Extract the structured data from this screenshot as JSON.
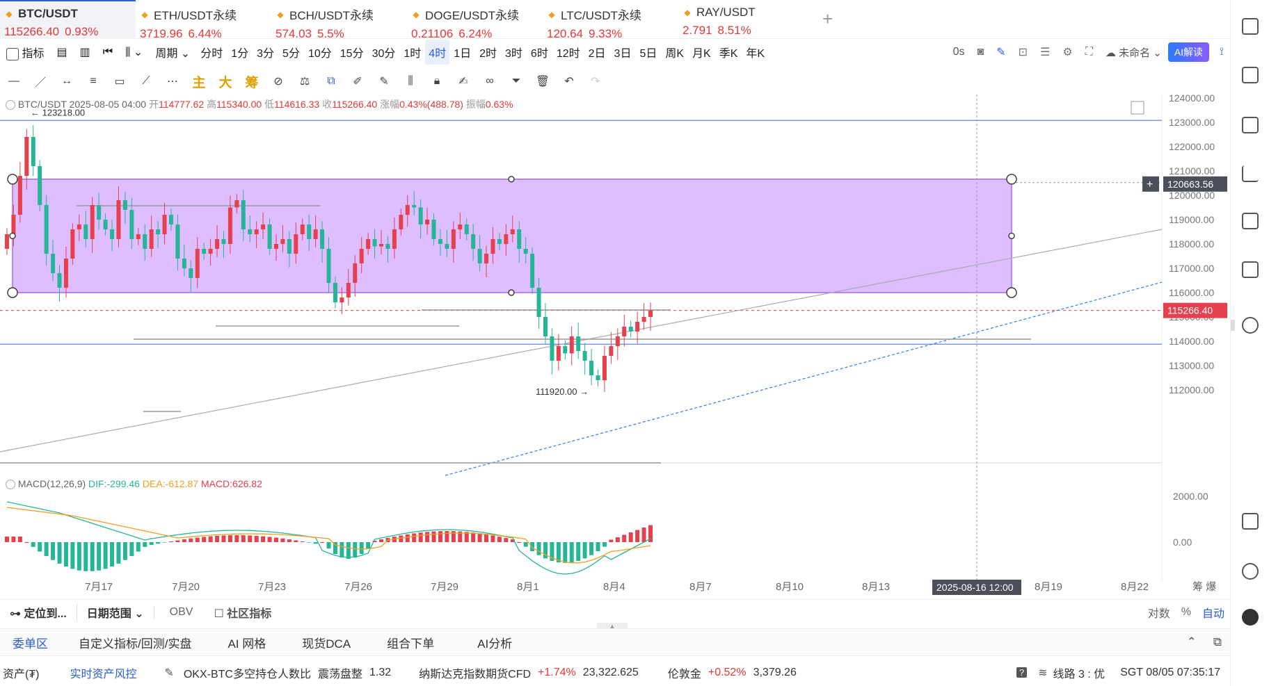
{
  "tabs": [
    {
      "name": "BTC/USDT",
      "price": "115266.40",
      "change": "0.93%",
      "active": true
    },
    {
      "name": "ETH/USDT永续",
      "price": "3719.96",
      "change": "6.44%"
    },
    {
      "name": "BCH/USDT永续",
      "price": "574.03",
      "change": "5.5%"
    },
    {
      "name": "DOGE/USDT永续",
      "price": "0.21106",
      "change": "6.24%"
    },
    {
      "name": "LTC/USDT永续",
      "price": "120.64",
      "change": "9.33%"
    },
    {
      "name": "RAY/USDT",
      "price": "2.791",
      "change": "8.51%"
    }
  ],
  "toolbar": {
    "indicators_label": "指标",
    "period_label": "周期",
    "intervals": [
      "分时",
      "1分",
      "3分",
      "5分",
      "10分",
      "15分",
      "30分",
      "1时",
      "4时",
      "1日",
      "2时",
      "3时",
      "6时",
      "12时",
      "2日",
      "3日",
      "5日",
      "周K",
      "月K",
      "季K",
      "年K"
    ],
    "active_interval": "4时",
    "countdown": "0s",
    "layout_name": "未命名",
    "ai_button": "AI解读"
  },
  "draw_tools": {
    "main": "主",
    "big": "大",
    "chip": "筹"
  },
  "info": {
    "symbol": "BTC/USDT",
    "datetime": "2025-08-05 04:00",
    "open_label": "开",
    "open": "114777.62",
    "high_label": "高",
    "high": "115340.00",
    "low_label": "低",
    "low": "114616.33",
    "close_label": "收",
    "close": "115266.40",
    "change_label": "涨幅",
    "change": "0.43%(488.78)",
    "amp_label": "振幅",
    "amp": "0.63%"
  },
  "chart_data": {
    "type": "candlestick",
    "price_axis": [
      "124000.00",
      "123000.00",
      "122000.00",
      "121000.00",
      "120000.00",
      "119000.00",
      "118000.00",
      "117000.00",
      "116000.00",
      "115000.00",
      "114000.00",
      "113000.00",
      "112000.00"
    ],
    "ylim": [
      111000,
      124600
    ],
    "x_labels": [
      "7月17",
      "7月20",
      "7月23",
      "7月26",
      "7月29",
      "8月1",
      "8月4",
      "8月7",
      "8月10",
      "8月13",
      "8月16",
      "8月19",
      "8月22"
    ],
    "crosshair_time": "2025-08-16 12:00",
    "crosshair_price": "120663.56",
    "last_price": "115266.40",
    "high_marker": "123218.00",
    "low_marker": "111920.00",
    "rectangle": {
      "top": 120663.56,
      "bottom": 116000
    },
    "horizontal_lines": [
      123080,
      113880
    ],
    "closes": [
      118400,
      119200,
      120800,
      122400,
      121200,
      119600,
      117600,
      116800,
      116200,
      117400,
      118600,
      118800,
      118200,
      119600,
      119000,
      118600,
      118200,
      119800,
      119400,
      118200,
      118400,
      117800,
      118600,
      118400,
      119200,
      118800,
      117400,
      117000,
      116600,
      117800,
      117600,
      117800,
      118200,
      118000,
      119500,
      119800,
      118600,
      118400,
      118600,
      118800,
      117800,
      118000,
      118200,
      117600,
      118400,
      118800,
      118200,
      118600,
      117800,
      116400,
      115600,
      115800,
      116400,
      117200,
      117800,
      118200,
      117900,
      118000,
      117800,
      118600,
      119200,
      119600,
      119500,
      118800,
      119000,
      118200,
      118000,
      117800,
      118600,
      118800,
      118400,
      117800,
      117200,
      117600,
      118200,
      118000,
      118400,
      118600,
      117800,
      117600,
      116200,
      115000,
      114200,
      113200,
      113800,
      113500,
      114200,
      113600,
      113200,
      112600,
      112400,
      113400,
      113800,
      114200,
      114600,
      114400,
      114800,
      115000,
      115266
    ],
    "macd": {
      "label": "MACD(12,26,9)",
      "dif": "DIF:-299.46",
      "dea": "DEA:-612.87",
      "macd": "MACD:626.82",
      "axis": [
        "2000.00",
        "0.00"
      ]
    }
  },
  "bottom_controls": {
    "locate": "定位到...",
    "range": "日期范围",
    "obv": "OBV",
    "community": "社区指标",
    "log": "对数",
    "percent": "%",
    "auto": "自动"
  },
  "bottom_tabs": [
    "委单区",
    "自定义指标/回测/实盘",
    "AI 网格",
    "现货DCA",
    "组合下单",
    "AI分析"
  ],
  "status": {
    "assets": "资产(₮)",
    "risk": "实时资产风控",
    "ticker1_name": "OKX-BTC多空持仓人数比",
    "ticker1_state": "震荡盘整",
    "ticker1_value": "1.32",
    "ticker2_name": "纳斯达克指数期货CFD",
    "ticker2_change": "+1.74%",
    "ticker2_value": "23,322.625",
    "ticker3_name": "伦敦金",
    "ticker3_change": "+0.52%",
    "ticker3_value": "3,379.26",
    "line": "线路 3 : 优",
    "time": "SGT 08/05 07:35:17"
  },
  "colors": {
    "accent": "#2a5bd7",
    "up": "#e5404e",
    "down": "#26b597",
    "rect": "#d9b3ff"
  }
}
